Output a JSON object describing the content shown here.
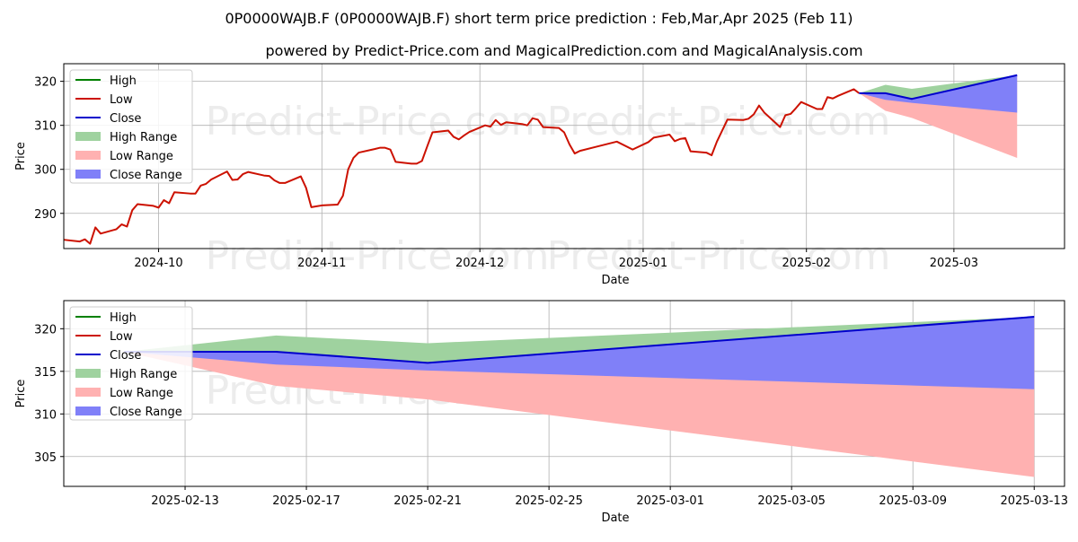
{
  "page": {
    "title": "0P0000WAJB.F (0P0000WAJB.F) short term price prediction : Feb,Mar,Apr 2025 (Feb 11)",
    "subtitle": "powered by Predict-Price.com and MagicalPrediction.com and MagicalAnalysis.com",
    "watermark": "Predict-Price.com"
  },
  "colors": {
    "high": "#008000",
    "low": "#cc1100",
    "close": "#0000cc",
    "high_range": "#9fd29f",
    "low_range": "#ffb1b1",
    "close_range": "#8080f8",
    "grid": "#b0b0b0",
    "watermark": "#ececec"
  },
  "legend_labels": [
    "High",
    "Low",
    "Close",
    "High Range",
    "Low Range",
    "Close Range"
  ],
  "chart_data": [
    {
      "type": "line",
      "xlabel": "Date",
      "ylabel": "Price",
      "legend_position": "top-left",
      "grid": true,
      "xlim": [
        "2024-09-13",
        "2025-03-22"
      ],
      "ylim": [
        282,
        324
      ],
      "x_ticks": [
        "2024-10-01",
        "2024-11-01",
        "2024-12-01",
        "2025-01-01",
        "2025-02-01",
        "2025-03-01"
      ],
      "x_tick_labels": [
        "2024-10",
        "2024-11",
        "2024-12",
        "2025-01",
        "2025-02",
        "2025-03"
      ],
      "y_ticks": [
        290,
        300,
        310,
        320
      ],
      "series": [
        {
          "name": "Low",
          "x": [
            "2024-09-13",
            "2024-09-16",
            "2024-09-17",
            "2024-09-18",
            "2024-09-19",
            "2024-09-20",
            "2024-09-23",
            "2024-09-24",
            "2024-09-25",
            "2024-09-26",
            "2024-09-27",
            "2024-09-30",
            "2024-10-01",
            "2024-10-02",
            "2024-10-03",
            "2024-10-04",
            "2024-10-07",
            "2024-10-08",
            "2024-10-09",
            "2024-10-10",
            "2024-10-11",
            "2024-10-14",
            "2024-10-15",
            "2024-10-16",
            "2024-10-17",
            "2024-10-18",
            "2024-10-21",
            "2024-10-22",
            "2024-10-23",
            "2024-10-24",
            "2024-10-25",
            "2024-10-28",
            "2024-10-29",
            "2024-10-30",
            "2024-10-31",
            "2024-11-01",
            "2024-11-04",
            "2024-11-05",
            "2024-11-06",
            "2024-11-07",
            "2024-11-08",
            "2024-11-11",
            "2024-11-12",
            "2024-11-13",
            "2024-11-14",
            "2024-11-15",
            "2024-11-18",
            "2024-11-19",
            "2024-11-20",
            "2024-11-21",
            "2024-11-22",
            "2024-11-25",
            "2024-11-26",
            "2024-11-27",
            "2024-11-28",
            "2024-11-29",
            "2024-12-02",
            "2024-12-03",
            "2024-12-04",
            "2024-12-05",
            "2024-12-06",
            "2024-12-09",
            "2024-12-10",
            "2024-12-11",
            "2024-12-12",
            "2024-12-13",
            "2024-12-16",
            "2024-12-17",
            "2024-12-18",
            "2024-12-19",
            "2024-12-20",
            "2024-12-23",
            "2024-12-27",
            "2024-12-30",
            "2025-01-02",
            "2025-01-03",
            "2025-01-06",
            "2025-01-07",
            "2025-01-08",
            "2025-01-09",
            "2025-01-10",
            "2025-01-13",
            "2025-01-14",
            "2025-01-15",
            "2025-01-16",
            "2025-01-17",
            "2025-01-20",
            "2025-01-21",
            "2025-01-22",
            "2025-01-23",
            "2025-01-24",
            "2025-01-27",
            "2025-01-28",
            "2025-01-29",
            "2025-01-30",
            "2025-01-31",
            "2025-02-03",
            "2025-02-04",
            "2025-02-05",
            "2025-02-06",
            "2025-02-07",
            "2025-02-10",
            "2025-02-11"
          ],
          "values": [
            284.0,
            283.6,
            284.1,
            283.1,
            286.8,
            285.4,
            286.4,
            287.5,
            287.0,
            290.7,
            292.1,
            291.7,
            291.3,
            293.0,
            292.3,
            294.8,
            294.5,
            294.5,
            296.3,
            296.7,
            297.7,
            299.5,
            297.6,
            297.7,
            298.9,
            299.4,
            298.6,
            298.5,
            297.5,
            296.9,
            296.9,
            298.4,
            295.8,
            291.4,
            291.6,
            291.8,
            292.0,
            294.0,
            300.0,
            302.6,
            303.8,
            304.6,
            304.9,
            304.9,
            304.5,
            301.7,
            301.3,
            301.3,
            301.9,
            305.2,
            308.4,
            308.8,
            307.4,
            306.8,
            307.7,
            308.5,
            310.0,
            309.7,
            311.2,
            310.1,
            310.7,
            310.3,
            310.0,
            311.6,
            311.3,
            309.6,
            309.4,
            308.4,
            305.7,
            303.6,
            304.2,
            305.1,
            306.3,
            304.5,
            306.2,
            307.2,
            307.9,
            306.4,
            306.9,
            307.1,
            304.1,
            303.8,
            303.2,
            306.3,
            308.8,
            311.3,
            311.2,
            311.5,
            312.5,
            314.5,
            312.9,
            309.6,
            312.3,
            312.6,
            313.9,
            315.3,
            313.7,
            313.7,
            316.4,
            316.1,
            316.7,
            318.2,
            317.3
          ]
        },
        {
          "name": "Close",
          "x": [
            "2025-02-11",
            "2025-02-16",
            "2025-02-21",
            "2025-03-13"
          ],
          "values": [
            317.3,
            317.3,
            316.0,
            321.4
          ]
        },
        {
          "name": "High Range",
          "x": [
            "2025-02-11",
            "2025-02-16",
            "2025-02-21",
            "2025-03-13"
          ],
          "upper": [
            317.3,
            319.2,
            318.3,
            321.4
          ],
          "lower": [
            317.3,
            317.3,
            316.0,
            321.4
          ]
        },
        {
          "name": "Low Range",
          "x": [
            "2025-02-11",
            "2025-02-16",
            "2025-02-21",
            "2025-03-13"
          ],
          "upper": [
            317.3,
            317.3,
            316.0,
            321.4
          ],
          "lower": [
            317.3,
            313.3,
            311.7,
            302.6
          ]
        },
        {
          "name": "Close Range",
          "x": [
            "2025-02-11",
            "2025-02-16",
            "2025-02-21",
            "2025-03-13"
          ],
          "upper": [
            317.3,
            317.3,
            316.0,
            321.4
          ],
          "lower": [
            317.3,
            315.8,
            315.1,
            312.9
          ]
        }
      ]
    },
    {
      "type": "line",
      "xlabel": "Date",
      "ylabel": "Price",
      "legend_position": "top-left",
      "grid": true,
      "xlim": [
        "2025-02-09",
        "2025-03-14"
      ],
      "ylim": [
        301.5,
        323.3
      ],
      "x_ticks": [
        "2025-02-13",
        "2025-02-17",
        "2025-02-21",
        "2025-02-25",
        "2025-03-01",
        "2025-03-05",
        "2025-03-09",
        "2025-03-13"
      ],
      "x_tick_labels": [
        "2025-02-13",
        "2025-02-17",
        "2025-02-21",
        "2025-02-25",
        "2025-03-01",
        "2025-03-05",
        "2025-03-09",
        "2025-03-13"
      ],
      "y_ticks": [
        305,
        310,
        315,
        320
      ],
      "series": [
        {
          "name": "Close",
          "x": [
            "2025-02-11",
            "2025-02-16",
            "2025-02-21",
            "2025-03-13"
          ],
          "values": [
            317.3,
            317.3,
            316.0,
            321.4
          ]
        },
        {
          "name": "High Range",
          "x": [
            "2025-02-11",
            "2025-02-16",
            "2025-02-21",
            "2025-03-13"
          ],
          "upper": [
            317.3,
            319.2,
            318.3,
            321.4
          ],
          "lower": [
            317.3,
            317.3,
            316.0,
            321.4
          ]
        },
        {
          "name": "Low Range",
          "x": [
            "2025-02-11",
            "2025-02-16",
            "2025-02-21",
            "2025-03-13"
          ],
          "upper": [
            317.3,
            317.3,
            316.0,
            321.4
          ],
          "lower": [
            317.3,
            313.3,
            311.7,
            302.6
          ]
        },
        {
          "name": "Close Range",
          "x": [
            "2025-02-11",
            "2025-02-16",
            "2025-02-21",
            "2025-03-13"
          ],
          "upper": [
            317.3,
            317.3,
            316.0,
            321.4
          ],
          "lower": [
            317.3,
            315.8,
            315.1,
            312.9
          ]
        }
      ]
    }
  ]
}
